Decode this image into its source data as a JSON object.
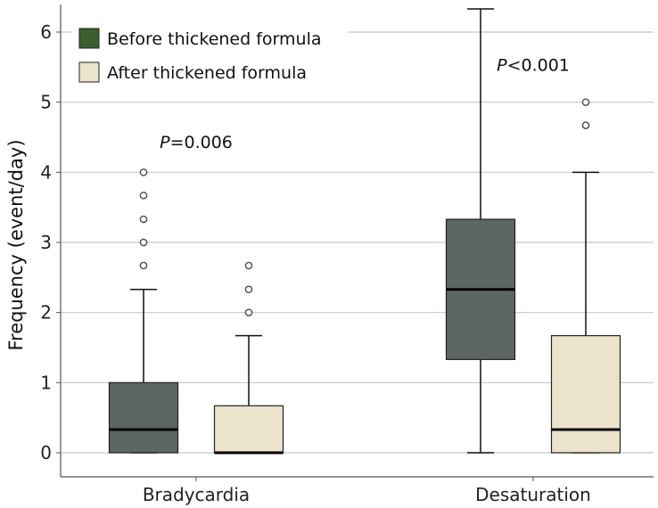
{
  "chart_data": {
    "type": "box",
    "title": "",
    "xlabel": "",
    "ylabel": "Frequency (event/day)",
    "ylim": [
      -0.1,
      6.35
    ],
    "yticks": [
      0,
      1,
      2,
      3,
      4,
      5,
      6
    ],
    "ytick_labels": [
      "0",
      "1",
      "2",
      "3",
      "4",
      "5",
      "6"
    ],
    "grid": "horizontal",
    "legend_position": "top-left",
    "categories": [
      "Bradycardia",
      "Desaturation"
    ],
    "series": [
      {
        "name": "Before thickened formula",
        "color": "#5d6762",
        "legend_color": "#3b5e2b",
        "boxes": [
          {
            "category": "Bradycardia",
            "min": 0,
            "q1": 0,
            "median": 0.33,
            "q3": 1.0,
            "max": 2.33,
            "outliers": [
              2.67,
              3.0,
              3.33,
              3.67,
              4.0
            ]
          },
          {
            "category": "Desaturation",
            "min": 0,
            "q1": 1.33,
            "median": 2.33,
            "q3": 3.33,
            "max": 6.33,
            "outliers": []
          }
        ]
      },
      {
        "name": "After thickened formula",
        "color": "#ebe3cc",
        "legend_color": "#ebe3cc",
        "boxes": [
          {
            "category": "Bradycardia",
            "min": 0,
            "q1": 0,
            "median": 0,
            "q3": 0.67,
            "max": 1.67,
            "outliers": [
              2.0,
              2.33,
              2.67
            ]
          },
          {
            "category": "Desaturation",
            "min": 0,
            "q1": 0,
            "median": 0.33,
            "q3": 1.67,
            "max": 4.0,
            "outliers": [
              4.67,
              5.0
            ]
          }
        ]
      }
    ],
    "annotations": [
      {
        "category": "Bradycardia",
        "text": "P=0.006",
        "italic_prefix": "P",
        "rest": "=0.006",
        "y": 4.35
      },
      {
        "category": "Desaturation",
        "text": "P<0.001",
        "italic_prefix": "P",
        "rest": "<0.001",
        "y": 5.45
      }
    ]
  }
}
